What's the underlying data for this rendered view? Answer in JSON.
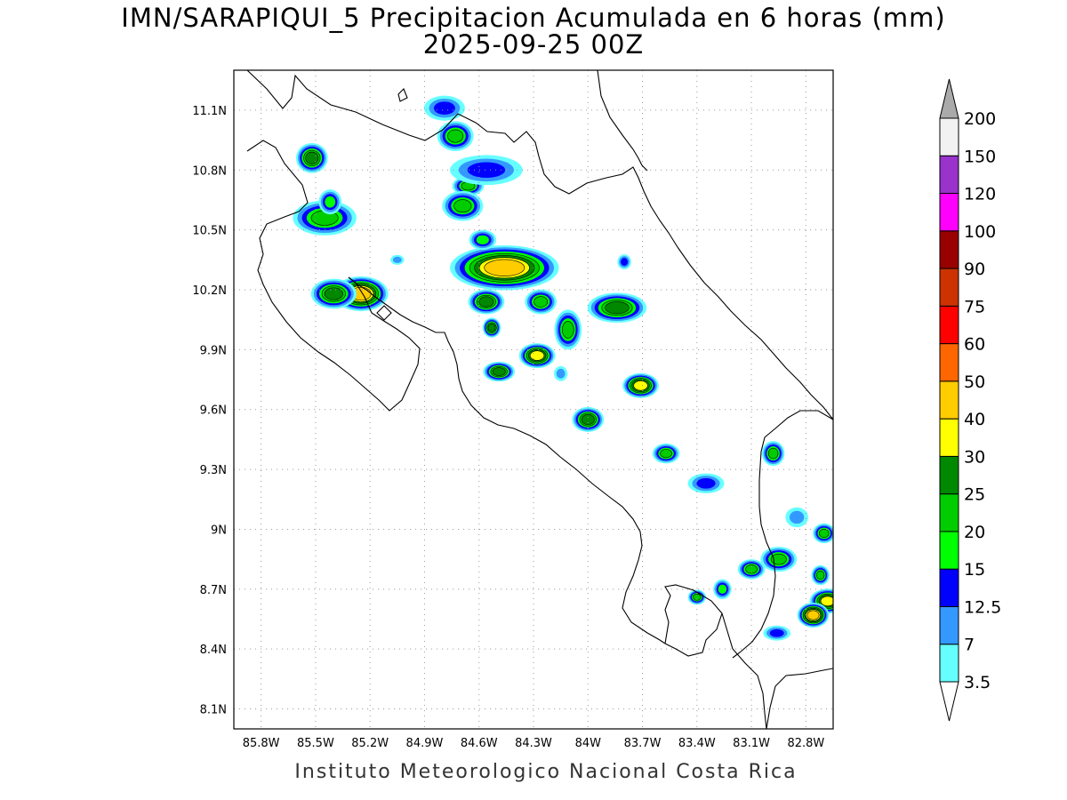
{
  "title": {
    "line1": "IMN/SARAPIQUI_5 Precipitacion Acumulada en 6 horas (mm)",
    "line2": "2025-09-25 00Z"
  },
  "credit": "Instituto Meteorologico Nacional Costa Rica",
  "map": {
    "lon_range": [
      -85.95,
      -82.65
    ],
    "lat_range": [
      8.0,
      11.3
    ],
    "lon_ticks": [
      {
        "value": -85.8,
        "label": "85.8W"
      },
      {
        "value": -85.5,
        "label": "85.5W"
      },
      {
        "value": -85.2,
        "label": "85.2W"
      },
      {
        "value": -84.9,
        "label": "84.9W"
      },
      {
        "value": -84.6,
        "label": "84.6W"
      },
      {
        "value": -84.3,
        "label": "84.3W"
      },
      {
        "value": -84.0,
        "label": "84W"
      },
      {
        "value": -83.7,
        "label": "83.7W"
      },
      {
        "value": -83.4,
        "label": "83.4W"
      },
      {
        "value": -83.1,
        "label": "83.1W"
      },
      {
        "value": -82.8,
        "label": "82.8W"
      }
    ],
    "lat_ticks": [
      {
        "value": 11.1,
        "label": "11.1N"
      },
      {
        "value": 10.8,
        "label": "10.8N"
      },
      {
        "value": 10.5,
        "label": "10.5N"
      },
      {
        "value": 10.2,
        "label": "10.2N"
      },
      {
        "value": 9.9,
        "label": "9.9N"
      },
      {
        "value": 9.6,
        "label": "9.6N"
      },
      {
        "value": 9.3,
        "label": "9.3N"
      },
      {
        "value": 9.0,
        "label": "9N"
      },
      {
        "value": 8.7,
        "label": "8.7N"
      },
      {
        "value": 8.4,
        "label": "8.4N"
      },
      {
        "value": 8.1,
        "label": "8.1N"
      }
    ],
    "grid": "dotted",
    "rain_cells": [
      {
        "lon": -85.52,
        "lat": 10.86,
        "rx": 0.07,
        "ry": 0.06,
        "peak": 5
      },
      {
        "lon": -85.45,
        "lat": 10.56,
        "rx": 0.14,
        "ry": 0.07,
        "peak": 4
      },
      {
        "lon": -85.42,
        "lat": 10.64,
        "rx": 0.05,
        "ry": 0.05,
        "peak": 3
      },
      {
        "lon": -85.25,
        "lat": 10.18,
        "rx": 0.12,
        "ry": 0.07,
        "peak": 7
      },
      {
        "lon": -85.4,
        "lat": 10.18,
        "rx": 0.1,
        "ry": 0.06,
        "peak": 5
      },
      {
        "lon": -84.73,
        "lat": 10.97,
        "rx": 0.08,
        "ry": 0.06,
        "peak": 4
      },
      {
        "lon": -84.66,
        "lat": 10.72,
        "rx": 0.07,
        "ry": 0.04,
        "peak": 4
      },
      {
        "lon": -84.56,
        "lat": 10.8,
        "rx": 0.16,
        "ry": 0.06,
        "peak": 2
      },
      {
        "lon": -84.69,
        "lat": 10.62,
        "rx": 0.09,
        "ry": 0.06,
        "peak": 4
      },
      {
        "lon": -84.79,
        "lat": 11.11,
        "rx": 0.09,
        "ry": 0.05,
        "peak": 2
      },
      {
        "lon": -84.46,
        "lat": 10.31,
        "rx": 0.24,
        "ry": 0.09,
        "peak": 7
      },
      {
        "lon": -84.58,
        "lat": 10.45,
        "rx": 0.06,
        "ry": 0.04,
        "peak": 3
      },
      {
        "lon": -84.56,
        "lat": 10.14,
        "rx": 0.08,
        "ry": 0.05,
        "peak": 5
      },
      {
        "lon": -84.26,
        "lat": 10.14,
        "rx": 0.07,
        "ry": 0.05,
        "peak": 4
      },
      {
        "lon": -84.53,
        "lat": 10.01,
        "rx": 0.04,
        "ry": 0.04,
        "peak": 5
      },
      {
        "lon": -84.11,
        "lat": 10.0,
        "rx": 0.06,
        "ry": 0.08,
        "peak": 4
      },
      {
        "lon": -83.84,
        "lat": 10.11,
        "rx": 0.13,
        "ry": 0.06,
        "peak": 5
      },
      {
        "lon": -84.28,
        "lat": 9.87,
        "rx": 0.08,
        "ry": 0.05,
        "peak": 6
      },
      {
        "lon": -84.49,
        "lat": 9.79,
        "rx": 0.07,
        "ry": 0.04,
        "peak": 5
      },
      {
        "lon": -83.71,
        "lat": 9.72,
        "rx": 0.08,
        "ry": 0.05,
        "peak": 6
      },
      {
        "lon": -84.0,
        "lat": 9.55,
        "rx": 0.07,
        "ry": 0.05,
        "peak": 5
      },
      {
        "lon": -83.57,
        "lat": 9.38,
        "rx": 0.06,
        "ry": 0.04,
        "peak": 4
      },
      {
        "lon": -83.35,
        "lat": 9.23,
        "rx": 0.08,
        "ry": 0.04,
        "peak": 2
      },
      {
        "lon": -82.98,
        "lat": 9.38,
        "rx": 0.05,
        "ry": 0.05,
        "peak": 4
      },
      {
        "lon": -82.7,
        "lat": 8.98,
        "rx": 0.05,
        "ry": 0.04,
        "peak": 4
      },
      {
        "lon": -82.95,
        "lat": 8.85,
        "rx": 0.08,
        "ry": 0.05,
        "peak": 4
      },
      {
        "lon": -83.1,
        "lat": 8.8,
        "rx": 0.06,
        "ry": 0.04,
        "peak": 4
      },
      {
        "lon": -82.68,
        "lat": 8.64,
        "rx": 0.08,
        "ry": 0.05,
        "peak": 6
      },
      {
        "lon": -82.76,
        "lat": 8.57,
        "rx": 0.07,
        "ry": 0.05,
        "peak": 7
      },
      {
        "lon": -82.72,
        "lat": 8.77,
        "rx": 0.04,
        "ry": 0.04,
        "peak": 4
      },
      {
        "lon": -83.4,
        "lat": 8.66,
        "rx": 0.04,
        "ry": 0.03,
        "peak": 4
      },
      {
        "lon": -83.26,
        "lat": 8.7,
        "rx": 0.04,
        "ry": 0.04,
        "peak": 3
      },
      {
        "lon": -82.96,
        "lat": 8.48,
        "rx": 0.06,
        "ry": 0.03,
        "peak": 2
      },
      {
        "lon": -82.85,
        "lat": 9.06,
        "rx": 0.05,
        "ry": 0.04,
        "peak": 1
      },
      {
        "lon": -84.15,
        "lat": 9.78,
        "rx": 0.03,
        "ry": 0.03,
        "peak": 1
      },
      {
        "lon": -83.8,
        "lat": 10.34,
        "rx": 0.03,
        "ry": 0.03,
        "peak": 2
      },
      {
        "lon": -85.05,
        "lat": 10.35,
        "rx": 0.03,
        "ry": 0.02,
        "peak": 1
      }
    ]
  },
  "colorbar": {
    "levels": [
      "3.5",
      "7",
      "12.5",
      "15",
      "20",
      "25",
      "30",
      "40",
      "50",
      "60",
      "75",
      "90",
      "100",
      "120",
      "150",
      "200"
    ],
    "colors": [
      "#66ffff",
      "#3399ff",
      "#0000ff",
      "#00ff00",
      "#00cc00",
      "#008800",
      "#ffff00",
      "#ffcc00",
      "#ff6600",
      "#ff0000",
      "#cc3300",
      "#990000",
      "#ff00ff",
      "#9933cc",
      "#f2f2f2"
    ],
    "over_color": "#aaaaaa",
    "under_color": "#ffffff"
  }
}
